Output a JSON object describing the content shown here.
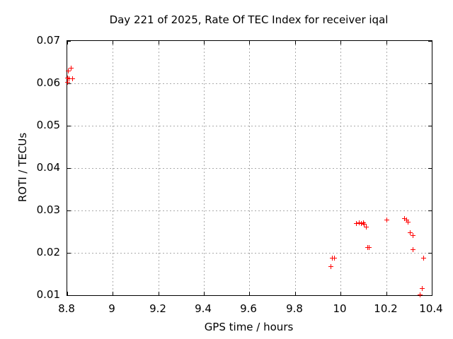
{
  "colors": {
    "background": "#ffffff",
    "axis": "#000000",
    "text": "#000000",
    "grid": "#aaaaaa",
    "marker": "#ff0000"
  },
  "chart_data": {
    "type": "scatter",
    "title": "Day 221 of 2025, Rate Of TEC Index for receiver iqal",
    "xlabel": "GPS time / hours",
    "ylabel": "ROTI / TECUs",
    "xlim": [
      8.8,
      10.4
    ],
    "ylim": [
      0.01,
      0.07
    ],
    "grid": true,
    "legend_position": "none",
    "x_ticks": {
      "values": [
        8.8,
        9.0,
        9.2,
        9.4,
        9.6,
        9.8,
        10.0,
        10.2,
        10.4
      ],
      "labels": [
        "8.8",
        "9",
        "9.2",
        "9.4",
        "9.6",
        "9.8",
        "10",
        "10.2",
        "10.4"
      ]
    },
    "y_ticks": {
      "values": [
        0.01,
        0.02,
        0.03,
        0.04,
        0.05,
        0.06,
        0.07
      ],
      "labels": [
        "0.01",
        "0.02",
        "0.03",
        "0.04",
        "0.05",
        "0.06",
        "0.07"
      ]
    },
    "series": [
      {
        "name": "ROTI",
        "marker": "plus",
        "marker_size": 7,
        "color": "#ff0000",
        "points": [
          [
            8.804,
            0.063
          ],
          [
            8.816,
            0.0636
          ],
          [
            8.8,
            0.0613
          ],
          [
            8.807,
            0.0612
          ],
          [
            8.821,
            0.0611
          ],
          [
            8.799,
            0.0604
          ],
          [
            9.963,
            0.0188
          ],
          [
            9.972,
            0.0188
          ],
          [
            9.956,
            0.0169
          ],
          [
            10.068,
            0.027
          ],
          [
            10.081,
            0.0272
          ],
          [
            10.089,
            0.027
          ],
          [
            10.098,
            0.0272
          ],
          [
            10.103,
            0.0268
          ],
          [
            10.112,
            0.0262
          ],
          [
            10.116,
            0.0214
          ],
          [
            10.124,
            0.0214
          ],
          [
            10.201,
            0.0278
          ],
          [
            10.278,
            0.0281
          ],
          [
            10.287,
            0.0279
          ],
          [
            10.295,
            0.0273
          ],
          [
            10.305,
            0.0248
          ],
          [
            10.317,
            0.0242
          ],
          [
            10.315,
            0.0209
          ],
          [
            10.363,
            0.0188
          ],
          [
            10.357,
            0.0116
          ],
          [
            10.347,
            0.0102
          ]
        ]
      }
    ]
  }
}
